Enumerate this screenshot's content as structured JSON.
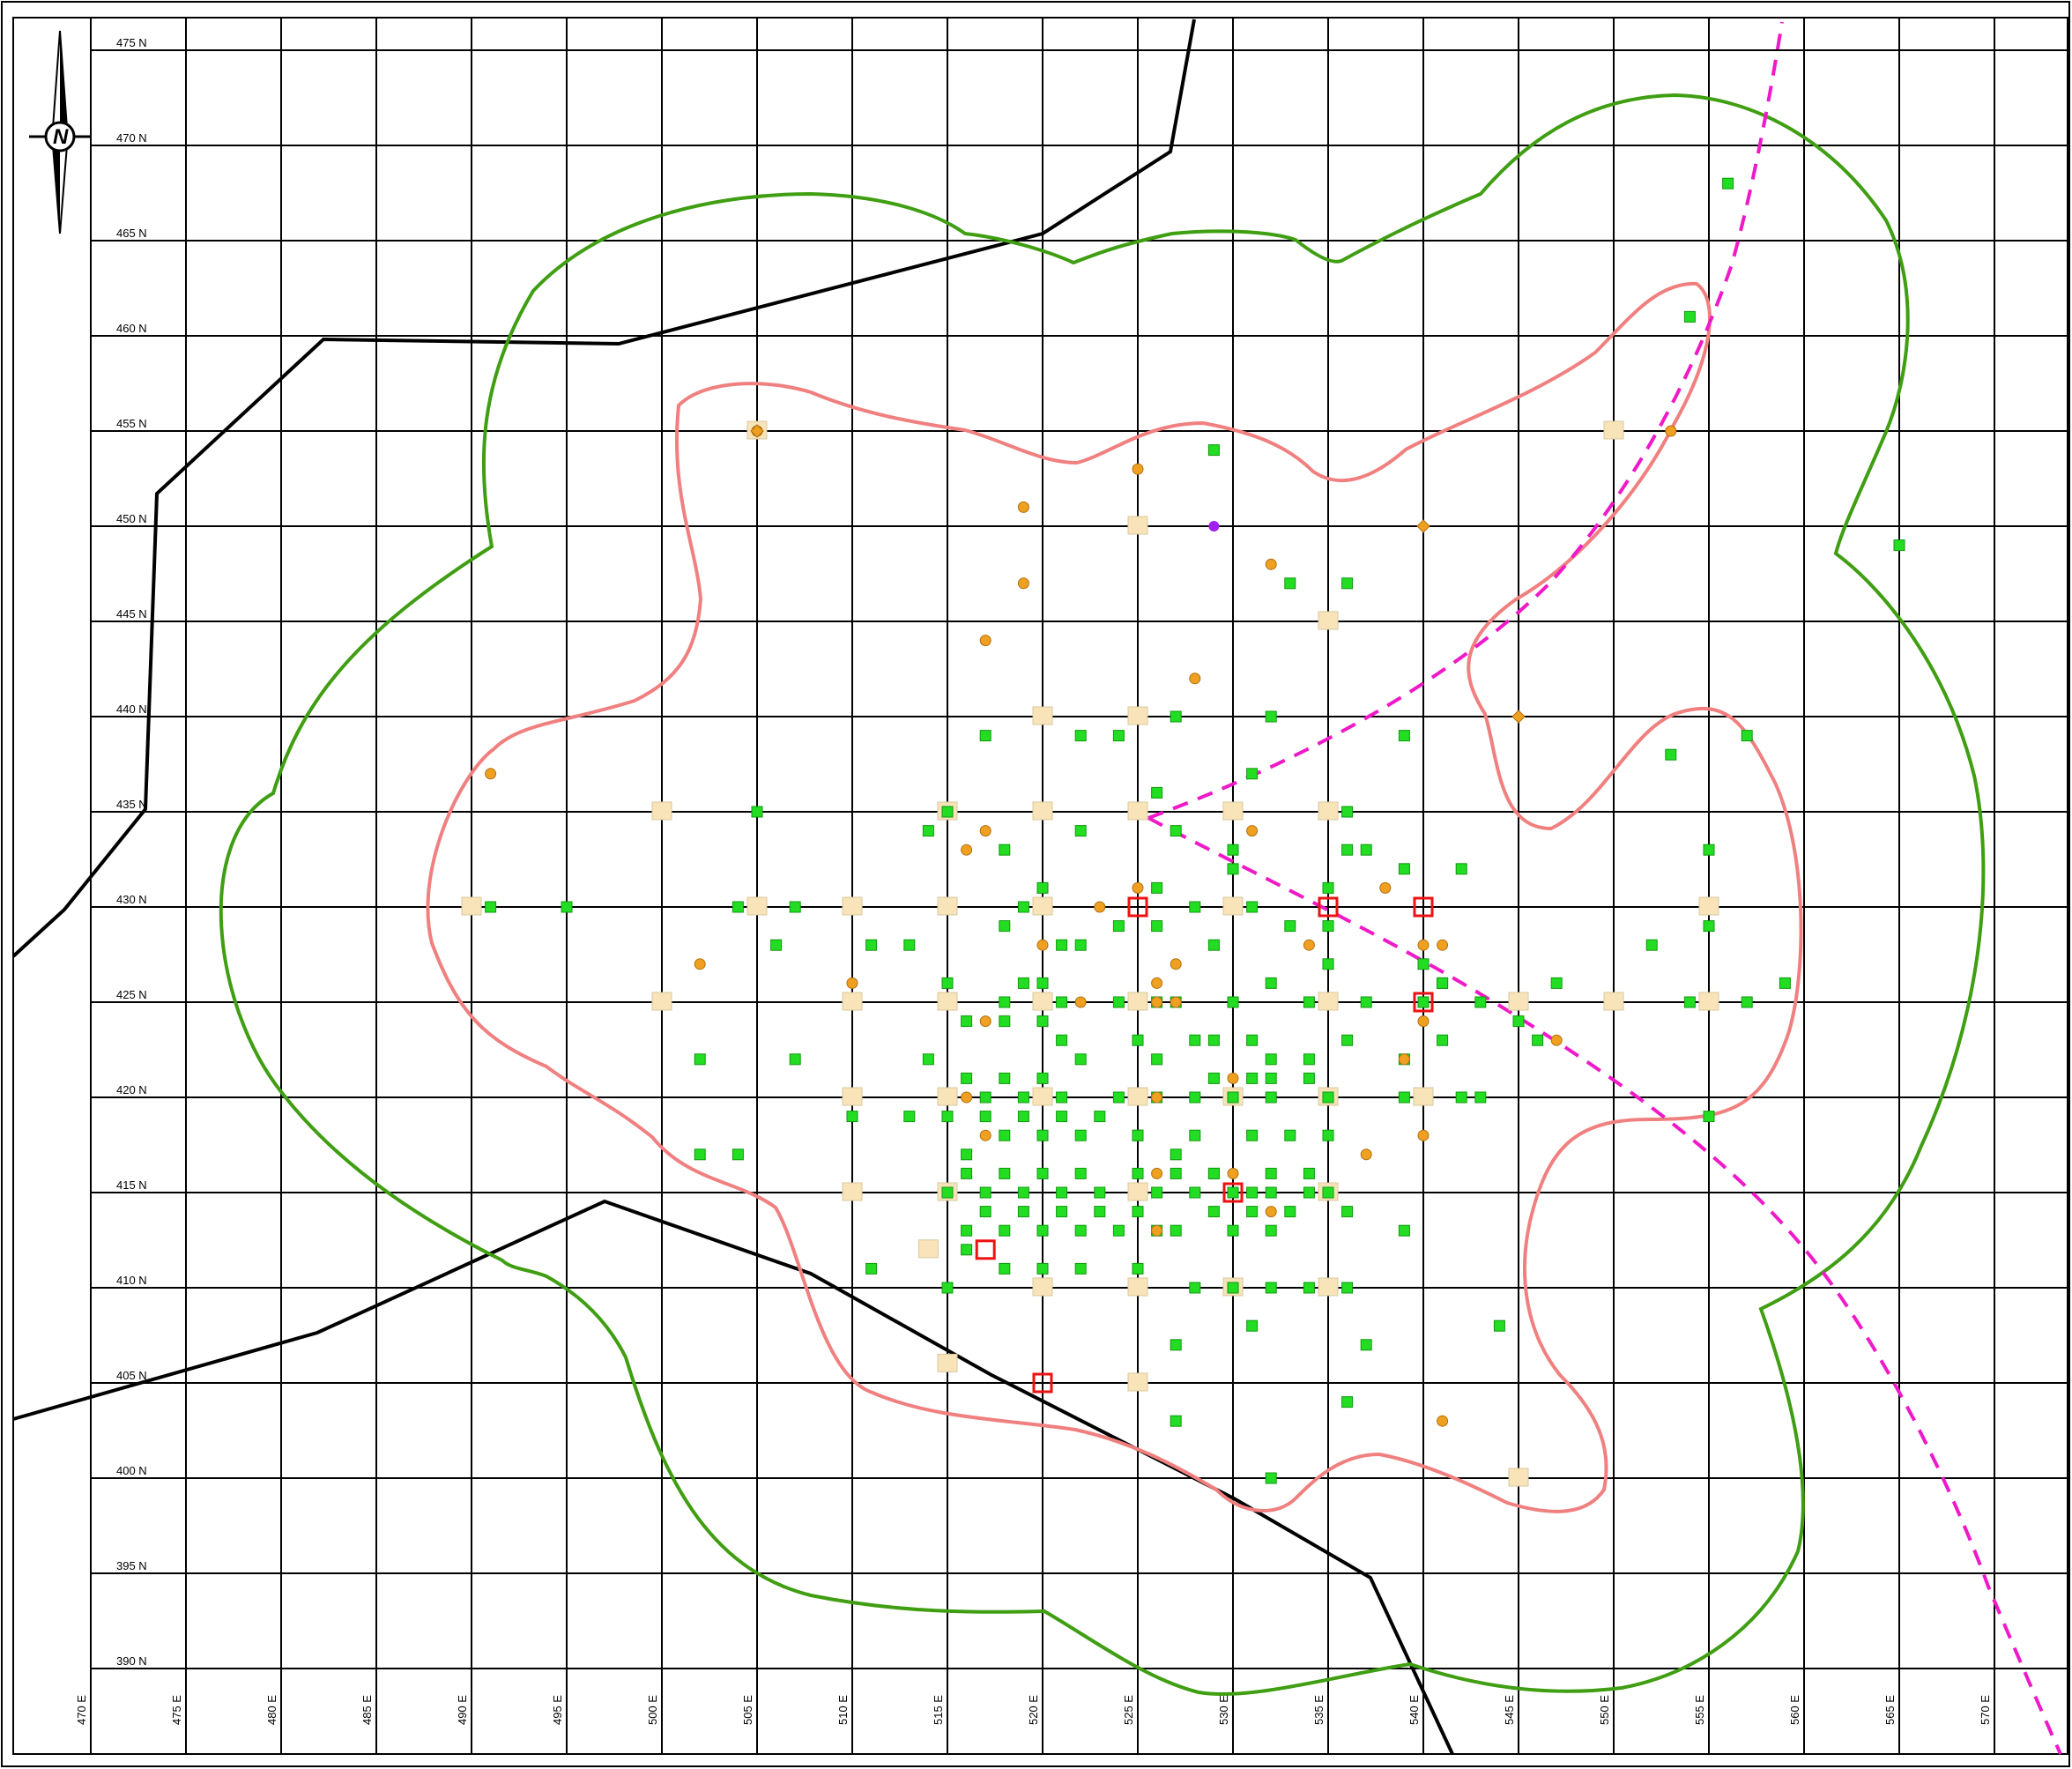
{
  "grid": {
    "e_labels": [
      "470 E",
      "475 E",
      "480 E",
      "485 E",
      "490 E",
      "495 E",
      "500 E",
      "505 E",
      "510 E",
      "515 E",
      "520 E",
      "525 E",
      "530 E",
      "535 E",
      "540 E",
      "545 E",
      "550 E",
      "555 E",
      "560 E",
      "565 E",
      "570 E"
    ],
    "n_labels": [
      "475 N",
      "470 N",
      "465 N",
      "460 N",
      "455 N",
      "450 N",
      "445 N",
      "440 N",
      "435 N",
      "430 N",
      "425 N",
      "420 N",
      "415 N",
      "410 N",
      "405 N",
      "400 N",
      "395 N",
      "390 N"
    ]
  },
  "north_arrow": {
    "letter": "N",
    "icon": "north-arrow-icon"
  },
  "colors": {
    "grid": "#000000",
    "green_contour": "#3f9e12",
    "pink_contour": "#f08080",
    "magenta_line": "#f019c8",
    "green_squares": "#22dd22",
    "orange_dots": "#f0a020",
    "beige_squares": "#f8e4b8",
    "red_squares": "#ee1111",
    "purple_dot": "#a020f0",
    "boundary_lines": "#000000"
  },
  "map_data": {
    "green_squares": [
      [
        556,
        468
      ],
      [
        554,
        461
      ],
      [
        529,
        454
      ],
      [
        565,
        449
      ],
      [
        533,
        447
      ],
      [
        536,
        447
      ],
      [
        539,
        439
      ],
      [
        553,
        438
      ],
      [
        557,
        439
      ],
      [
        524,
        439
      ],
      [
        517,
        439
      ],
      [
        522,
        439
      ],
      [
        527,
        440
      ],
      [
        532,
        440
      ],
      [
        531,
        437
      ],
      [
        526,
        436
      ],
      [
        515,
        435
      ],
      [
        536,
        435
      ],
      [
        505,
        435
      ],
      [
        514,
        434
      ],
      [
        522,
        434
      ],
      [
        518,
        433
      ],
      [
        527,
        434
      ],
      [
        530,
        433
      ],
      [
        536,
        433
      ],
      [
        537,
        433
      ],
      [
        539,
        432
      ],
      [
        542,
        432
      ],
      [
        530,
        432
      ],
      [
        535,
        431
      ],
      [
        520,
        431
      ],
      [
        526,
        431
      ],
      [
        531,
        430
      ],
      [
        528,
        430
      ],
      [
        519,
        430
      ],
      [
        491,
        430
      ],
      [
        495,
        430
      ],
      [
        504,
        430
      ],
      [
        507,
        430
      ],
      [
        506,
        428
      ],
      [
        524,
        429
      ],
      [
        522,
        428
      ],
      [
        533,
        429
      ],
      [
        535,
        429
      ],
      [
        511,
        428
      ],
      [
        513,
        428
      ],
      [
        518,
        429
      ],
      [
        521,
        428
      ],
      [
        526,
        429
      ],
      [
        529,
        428
      ],
      [
        535,
        427
      ],
      [
        540,
        427
      ],
      [
        547,
        426
      ],
      [
        541,
        426
      ],
      [
        552,
        428
      ],
      [
        555,
        429
      ],
      [
        559,
        426
      ],
      [
        515,
        426
      ],
      [
        518,
        425
      ],
      [
        519,
        426
      ],
      [
        520,
        426
      ],
      [
        521,
        425
      ],
      [
        524,
        425
      ],
      [
        526,
        425
      ],
      [
        527,
        425
      ],
      [
        530,
        425
      ],
      [
        532,
        426
      ],
      [
        534,
        425
      ],
      [
        537,
        425
      ],
      [
        540,
        425
      ],
      [
        541,
        426
      ],
      [
        543,
        425
      ],
      [
        545,
        424
      ],
      [
        554,
        425
      ],
      [
        557,
        425
      ],
      [
        555,
        433
      ],
      [
        516,
        424
      ],
      [
        518,
        424
      ],
      [
        520,
        424
      ],
      [
        521,
        423
      ],
      [
        528,
        423
      ],
      [
        529,
        423
      ],
      [
        531,
        423
      ],
      [
        532,
        422
      ],
      [
        534,
        422
      ],
      [
        536,
        423
      ],
      [
        539,
        422
      ],
      [
        541,
        423
      ],
      [
        546,
        423
      ],
      [
        502,
        422
      ],
      [
        507,
        422
      ],
      [
        514,
        422
      ],
      [
        516,
        421
      ],
      [
        518,
        421
      ],
      [
        520,
        421
      ],
      [
        522,
        422
      ],
      [
        525,
        423
      ],
      [
        526,
        422
      ],
      [
        529,
        421
      ],
      [
        531,
        421
      ],
      [
        532,
        421
      ],
      [
        534,
        421
      ],
      [
        539,
        420
      ],
      [
        542,
        420
      ],
      [
        517,
        420
      ],
      [
        519,
        420
      ],
      [
        521,
        420
      ],
      [
        524,
        420
      ],
      [
        526,
        420
      ],
      [
        528,
        420
      ],
      [
        530,
        420
      ],
      [
        532,
        420
      ],
      [
        535,
        420
      ],
      [
        543,
        420
      ],
      [
        555,
        419
      ],
      [
        510,
        419
      ],
      [
        513,
        419
      ],
      [
        515,
        419
      ],
      [
        517,
        419
      ],
      [
        519,
        419
      ],
      [
        521,
        419
      ],
      [
        523,
        419
      ],
      [
        525,
        418
      ],
      [
        528,
        418
      ],
      [
        531,
        418
      ],
      [
        533,
        418
      ],
      [
        535,
        418
      ],
      [
        502,
        417
      ],
      [
        504,
        417
      ],
      [
        516,
        417
      ],
      [
        518,
        418
      ],
      [
        520,
        418
      ],
      [
        522,
        418
      ],
      [
        525,
        418
      ],
      [
        527,
        417
      ],
      [
        529,
        416
      ],
      [
        532,
        416
      ],
      [
        534,
        416
      ],
      [
        516,
        416
      ],
      [
        518,
        416
      ],
      [
        520,
        416
      ],
      [
        522,
        416
      ],
      [
        525,
        416
      ],
      [
        527,
        416
      ],
      [
        529,
        416
      ],
      [
        531,
        415
      ],
      [
        534,
        415
      ],
      [
        515,
        415
      ],
      [
        517,
        415
      ],
      [
        519,
        415
      ],
      [
        521,
        415
      ],
      [
        523,
        415
      ],
      [
        526,
        415
      ],
      [
        528,
        415
      ],
      [
        530,
        415
      ],
      [
        532,
        415
      ],
      [
        535,
        415
      ],
      [
        517,
        414
      ],
      [
        519,
        414
      ],
      [
        521,
        414
      ],
      [
        523,
        414
      ],
      [
        525,
        414
      ],
      [
        527,
        413
      ],
      [
        529,
        414
      ],
      [
        531,
        414
      ],
      [
        533,
        414
      ],
      [
        536,
        414
      ],
      [
        539,
        413
      ],
      [
        516,
        413
      ],
      [
        518,
        413
      ],
      [
        520,
        413
      ],
      [
        522,
        413
      ],
      [
        524,
        413
      ],
      [
        526,
        413
      ],
      [
        530,
        413
      ],
      [
        532,
        413
      ],
      [
        516,
        412
      ],
      [
        518,
        411
      ],
      [
        520,
        411
      ],
      [
        522,
        411
      ],
      [
        525,
        411
      ],
      [
        511,
        411
      ],
      [
        515,
        410
      ],
      [
        528,
        410
      ],
      [
        530,
        410
      ],
      [
        532,
        410
      ],
      [
        534,
        410
      ],
      [
        536,
        410
      ],
      [
        531,
        408
      ],
      [
        537,
        407
      ],
      [
        544,
        408
      ],
      [
        527,
        407
      ],
      [
        536,
        404
      ],
      [
        527,
        403
      ],
      [
        532,
        400
      ]
    ],
    "orange_dots": [
      [
        505,
        455
      ],
      [
        525,
        453
      ],
      [
        519,
        451
      ],
      [
        532,
        448
      ],
      [
        519,
        447
      ],
      [
        517,
        444
      ],
      [
        528,
        442
      ],
      [
        553,
        455
      ],
      [
        491,
        437
      ],
      [
        531,
        434
      ],
      [
        517,
        434
      ],
      [
        516,
        433
      ],
      [
        525,
        431
      ],
      [
        523,
        430
      ],
      [
        538,
        431
      ],
      [
        540,
        428
      ],
      [
        534,
        428
      ],
      [
        502,
        427
      ],
      [
        510,
        426
      ],
      [
        526,
        426
      ],
      [
        527,
        427
      ],
      [
        520,
        428
      ],
      [
        526,
        425
      ],
      [
        527,
        425
      ],
      [
        522,
        425
      ],
      [
        517,
        424
      ],
      [
        540,
        424
      ],
      [
        547,
        423
      ],
      [
        539,
        422
      ],
      [
        530,
        421
      ],
      [
        526,
        420
      ],
      [
        516,
        420
      ],
      [
        517,
        418
      ],
      [
        540,
        418
      ],
      [
        537,
        417
      ],
      [
        526,
        416
      ],
      [
        530,
        416
      ],
      [
        532,
        414
      ],
      [
        526,
        413
      ],
      [
        541,
        403
      ],
      [
        541,
        428
      ]
    ],
    "beige_squares": [
      [
        505,
        455
      ],
      [
        525,
        450
      ],
      [
        535,
        445
      ],
      [
        520,
        440
      ],
      [
        525,
        440
      ],
      [
        500,
        435
      ],
      [
        515,
        435
      ],
      [
        520,
        435
      ],
      [
        525,
        435
      ],
      [
        530,
        435
      ],
      [
        535,
        435
      ],
      [
        490,
        430
      ],
      [
        505,
        430
      ],
      [
        510,
        430
      ],
      [
        515,
        430
      ],
      [
        520,
        430
      ],
      [
        530,
        430
      ],
      [
        555,
        430
      ],
      [
        500,
        425
      ],
      [
        510,
        425
      ],
      [
        515,
        425
      ],
      [
        520,
        425
      ],
      [
        525,
        425
      ],
      [
        535,
        425
      ],
      [
        545,
        425
      ],
      [
        550,
        425
      ],
      [
        555,
        425
      ],
      [
        510,
        420
      ],
      [
        515,
        420
      ],
      [
        520,
        420
      ],
      [
        525,
        420
      ],
      [
        530,
        420
      ],
      [
        535,
        420
      ],
      [
        540,
        420
      ],
      [
        510,
        415
      ],
      [
        515,
        415
      ],
      [
        525,
        415
      ],
      [
        535,
        415
      ],
      [
        514,
        412
      ],
      [
        520,
        410
      ],
      [
        525,
        410
      ],
      [
        530,
        410
      ],
      [
        535,
        410
      ],
      [
        515,
        406
      ],
      [
        525,
        405
      ],
      [
        545,
        400
      ],
      [
        550,
        455
      ]
    ],
    "red_squares": [
      [
        525,
        430
      ],
      [
        535,
        430
      ],
      [
        540,
        430
      ],
      [
        540,
        425
      ],
      [
        530,
        415
      ],
      [
        517,
        412
      ],
      [
        520,
        405
      ]
    ],
    "orange_diamonds": [
      [
        540,
        450
      ],
      [
        545,
        440
      ],
      [
        505,
        455
      ]
    ],
    "purple_dot": [
      [
        529,
        450
      ]
    ]
  }
}
